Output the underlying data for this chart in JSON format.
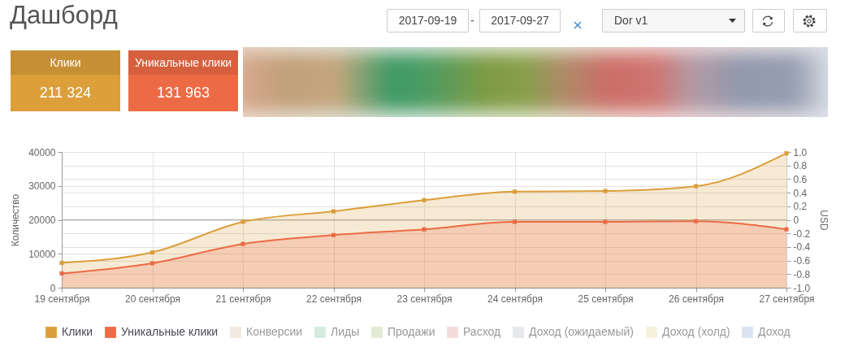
{
  "chart_data": {
    "type": "area",
    "title": "Дашборд",
    "annotations": [
      "2017-09-19",
      "-",
      "2017-09-27",
      "Dor v1",
      "Клики",
      "211 324",
      "Уникальные клики",
      "131 963"
    ],
    "categories": [
      "19 сентября",
      "20 сентября",
      "21 сентября",
      "22 сентября",
      "23 сентября",
      "24 сентября",
      "25 сентября",
      "26 сентября",
      "27 сентября"
    ],
    "series": [
      {
        "name": "Клики",
        "color": "#dc9e3a",
        "values": [
          7300,
          10400,
          19400,
          22500,
          25800,
          28300,
          28500,
          29900,
          39600
        ]
      },
      {
        "name": "Уникальные клики",
        "color": "#ec6b45",
        "values": [
          4200,
          7200,
          12900,
          15500,
          17200,
          19400,
          19400,
          19600,
          17200
        ]
      },
      {
        "name": "Конверсии",
        "color": "#f2e9e1",
        "values": [
          null,
          null,
          null,
          null,
          null,
          null,
          null,
          null,
          null
        ]
      },
      {
        "name": "Лиды",
        "color": "#d6ebdf",
        "values": [
          null,
          null,
          null,
          null,
          null,
          null,
          null,
          null,
          null
        ]
      },
      {
        "name": "Продажи",
        "color": "#e3ead4",
        "values": [
          null,
          null,
          null,
          null,
          null,
          null,
          null,
          null,
          null
        ]
      },
      {
        "name": "Расход",
        "color": "#f3dbdb",
        "values": [
          null,
          null,
          null,
          null,
          null,
          null,
          null,
          null,
          null
        ]
      },
      {
        "name": "Доход (ожидаемый)",
        "color": "#e7e8ec",
        "values": [
          null,
          null,
          null,
          null,
          null,
          null,
          null,
          null,
          null
        ]
      },
      {
        "name": "Доход (холд)",
        "color": "#f6f1da",
        "values": [
          null,
          null,
          null,
          null,
          null,
          null,
          null,
          null,
          null
        ]
      },
      {
        "name": "Доход",
        "color": "#d9e4f0",
        "values": [
          null,
          null,
          null,
          null,
          null,
          null,
          null,
          null,
          null
        ]
      }
    ],
    "ylabel": "Количество",
    "y2label": "USD",
    "ylim": [
      0,
      40000
    ],
    "yticks": [
      0,
      10000,
      20000,
      30000,
      40000
    ],
    "y2lim": [
      -1,
      1
    ],
    "y2ticks": [
      {
        "value": -1,
        "label": "-1.0"
      },
      -0.8,
      -0.6,
      -0.4,
      -0.2,
      0,
      0.2,
      0.4,
      0.6,
      0.8,
      {
        "value": 1,
        "label": "1.0"
      }
    ],
    "ref_lines": [
      {
        "axis": "y2",
        "value": 0,
        "color": "#a8a8a8"
      }
    ],
    "grid": true,
    "legend": "bottom",
    "marker": "square",
    "line_style": "solid"
  }
}
